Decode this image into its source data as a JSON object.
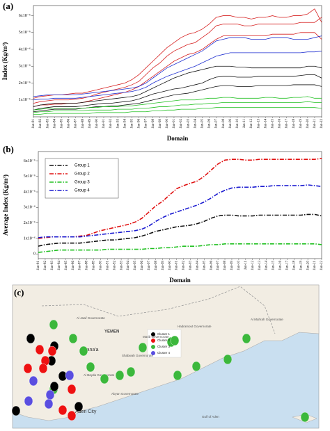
{
  "chart_data": [
    {
      "type": "line",
      "label": "(a)",
      "y_label": "Index (Kg/m³)",
      "x_label": "Domain",
      "line_style": "solid",
      "categories": [
        "Jan-81",
        "Jan-82",
        "Jan-83",
        "Jan-84",
        "Jan-85",
        "Jan-86",
        "Jan-87",
        "Jan-88",
        "Jan-89",
        "Jan-90",
        "Jan-91",
        "Jan-92",
        "Jan-93",
        "Jan-94",
        "Jan-95",
        "Jan-96",
        "Jan-97",
        "Jan-98",
        "Jan-99",
        "Jan-00",
        "Jan-01",
        "Jan-02",
        "Jan-03",
        "Jan-04",
        "Jan-05",
        "Jan-06",
        "Jan-07",
        "Jan-08",
        "Jan-09",
        "Jan-10",
        "Jan-11",
        "Jan-12",
        "Jan-13",
        "Jan-14",
        "Jan-15",
        "Jan-16",
        "Jan-17",
        "Jan-18",
        "Jan-19",
        "Jan-20",
        "Jan-21",
        "Jan-22"
      ],
      "ylim": [
        0,
        6.6e-06
      ],
      "yticks": [
        {
          "value": 1e-06,
          "label": "1x10⁻⁶"
        },
        {
          "value": 2e-06,
          "label": "2x10⁻⁶"
        },
        {
          "value": 3e-06,
          "label": "3x10⁻⁶"
        },
        {
          "value": 4e-06,
          "label": "4x10⁻⁶"
        },
        {
          "value": 5e-06,
          "label": "5x10⁻⁶"
        },
        {
          "value": 6e-06,
          "label": "6x10⁻⁶"
        }
      ],
      "series": [
        {
          "color": "#d62020",
          "values": [
            1.1e-06,
            1.2e-06,
            1.25e-06,
            1.3e-06,
            1.3e-06,
            1.35e-06,
            1.4e-06,
            1.4e-06,
            1.5e-06,
            1.6e-06,
            1.7e-06,
            1.8e-06,
            1.9e-06,
            2e-06,
            2.2e-06,
            2.5e-06,
            2.9e-06,
            3.3e-06,
            3.7e-06,
            4.1e-06,
            4.4e-06,
            4.7e-06,
            4.9e-06,
            5e-06,
            5.2e-06,
            5.5e-06,
            5.9e-06,
            6e-06,
            6e-06,
            5.9e-06,
            5.9e-06,
            5.8e-06,
            5.9e-06,
            5.9e-06,
            6e-06,
            5.9e-06,
            5.9e-06,
            6e-06,
            6e-06,
            6.1e-06,
            6.4e-06,
            5.6e-06
          ]
        },
        {
          "color": "#d62020",
          "values": [
            8e-07,
            9e-07,
            9.5e-07,
            1e-06,
            1e-06,
            1e-06,
            1.05e-06,
            1.1e-06,
            1.2e-06,
            1.35e-06,
            1.45e-06,
            1.55e-06,
            1.65e-06,
            1.75e-06,
            1.9e-06,
            2.1e-06,
            2.5e-06,
            2.9e-06,
            3.2e-06,
            3.6e-06,
            3.9e-06,
            4.1e-06,
            4.3e-06,
            4.4e-06,
            4.7e-06,
            5e-06,
            5.4e-06,
            5.5e-06,
            5.5e-06,
            5.5e-06,
            5.4e-06,
            5.4e-06,
            5.5e-06,
            5.5e-06,
            5.5e-06,
            5.5e-06,
            5.5e-06,
            5.5e-06,
            5.6e-06,
            5.6e-06,
            5.6e-06,
            5.9e-06
          ]
        },
        {
          "color": "#d62020",
          "values": [
            6e-07,
            7e-07,
            7e-07,
            7.5e-07,
            7.5e-07,
            8e-07,
            8e-07,
            8.5e-07,
            9.5e-07,
            1.05e-06,
            1.15e-06,
            1.25e-06,
            1.35e-06,
            1.45e-06,
            1.6e-06,
            1.8e-06,
            2.1e-06,
            2.4e-06,
            2.7e-06,
            3e-06,
            3.3e-06,
            3.5e-06,
            3.7e-06,
            3.8e-06,
            4e-06,
            4.3e-06,
            4.6e-06,
            4.8e-06,
            4.8e-06,
            4.8e-06,
            4.8e-06,
            4.8e-06,
            4.8e-06,
            4.8e-06,
            4.9e-06,
            4.9e-06,
            4.9e-06,
            4.9e-06,
            5e-06,
            5e-06,
            5e-06,
            4.6e-06
          ]
        },
        {
          "color": "#1f2fd0",
          "values": [
            1.2e-06,
            1.25e-06,
            1.3e-06,
            1.3e-06,
            1.3e-06,
            1.3e-06,
            1.3e-06,
            1.35e-06,
            1.4e-06,
            1.45e-06,
            1.5e-06,
            1.55e-06,
            1.6e-06,
            1.65e-06,
            1.7e-06,
            1.8e-06,
            2e-06,
            2.3e-06,
            2.6e-06,
            2.9e-06,
            3.1e-06,
            3.3e-06,
            3.5e-06,
            3.7e-06,
            3.9e-06,
            4.2e-06,
            4.5e-06,
            4.6e-06,
            4.7e-06,
            4.7e-06,
            4.7e-06,
            4.6e-06,
            4.6e-06,
            4.6e-06,
            4.7e-06,
            4.7e-06,
            4.7e-06,
            4.6e-06,
            4.6e-06,
            4.6e-06,
            4.7e-06,
            4.8e-06
          ]
        },
        {
          "color": "#1f2fd0",
          "values": [
            1e-06,
            1.05e-06,
            1.05e-06,
            1.1e-06,
            1.1e-06,
            1.1e-06,
            1.1e-06,
            1.15e-06,
            1.2e-06,
            1.25e-06,
            1.3e-06,
            1.35e-06,
            1.4e-06,
            1.45e-06,
            1.5e-06,
            1.6e-06,
            1.75e-06,
            2e-06,
            2.2e-06,
            2.4e-06,
            2.55e-06,
            2.7e-06,
            2.85e-06,
            3e-06,
            3.2e-06,
            3.4e-06,
            3.6e-06,
            3.7e-06,
            3.8e-06,
            3.8e-06,
            3.8e-06,
            3.8e-06,
            3.8e-06,
            3.8e-06,
            3.8e-06,
            3.8e-06,
            3.8e-06,
            3.8e-06,
            3.8e-06,
            3.85e-06,
            3.85e-06,
            3.9e-06
          ]
        },
        {
          "color": "#111111",
          "values": [
            6e-07,
            7e-07,
            7.5e-07,
            8e-07,
            8e-07,
            8e-07,
            8e-07,
            8.5e-07,
            9e-07,
            9.5e-07,
            1e-06,
            1.05e-06,
            1.1e-06,
            1.15e-06,
            1.2e-06,
            1.3e-06,
            1.5e-06,
            1.7e-06,
            1.9e-06,
            2.1e-06,
            2.3e-06,
            2.45e-06,
            2.6e-06,
            2.7e-06,
            2.8e-06,
            2.9e-06,
            3e-06,
            3e-06,
            3e-06,
            2.95e-06,
            2.95e-06,
            2.9e-06,
            2.9e-06,
            2.9e-06,
            2.9e-06,
            2.9e-06,
            2.9e-06,
            2.9e-06,
            2.9e-06,
            3e-06,
            3e-06,
            2.9e-06
          ]
        },
        {
          "color": "#111111",
          "values": [
            4e-07,
            5e-07,
            5.5e-07,
            6e-07,
            6e-07,
            6e-07,
            6e-07,
            6.5e-07,
            7e-07,
            7.5e-07,
            8e-07,
            8e-07,
            8.5e-07,
            9e-07,
            9.5e-07,
            1.05e-06,
            1.2e-06,
            1.35e-06,
            1.45e-06,
            1.55e-06,
            1.65e-06,
            1.7e-06,
            1.8e-06,
            1.9e-06,
            2e-06,
            2.2e-06,
            2.35e-06,
            2.4e-06,
            2.4e-06,
            2.35e-06,
            2.35e-06,
            2.35e-06,
            2.4e-06,
            2.4e-06,
            2.4e-06,
            2.4e-06,
            2.4e-06,
            2.4e-06,
            2.45e-06,
            2.5e-06,
            2.5e-06,
            2.3e-06
          ]
        },
        {
          "color": "#111111",
          "values": [
            3e-07,
            3.5e-07,
            4e-07,
            4.5e-07,
            4.5e-07,
            4.5e-07,
            4.5e-07,
            5e-07,
            5.5e-07,
            6e-07,
            6e-07,
            6.5e-07,
            6.5e-07,
            7e-07,
            7.5e-07,
            8e-07,
            9e-07,
            1e-06,
            1.1e-06,
            1.2e-06,
            1.3e-06,
            1.35e-06,
            1.4e-06,
            1.5e-06,
            1.6e-06,
            1.7e-06,
            1.8e-06,
            1.85e-06,
            1.85e-06,
            1.8e-06,
            1.8e-06,
            1.8e-06,
            1.85e-06,
            1.85e-06,
            1.85e-06,
            1.85e-06,
            1.85e-06,
            1.9e-06,
            1.9e-06,
            1.9e-06,
            1.9e-06,
            1.8e-06
          ]
        },
        {
          "color": "#22c022",
          "values": [
            4e-07,
            4.5e-07,
            5e-07,
            5e-07,
            5e-07,
            5e-07,
            5e-07,
            5e-07,
            5.5e-07,
            5.5e-07,
            6e-07,
            6e-07,
            6e-07,
            6.5e-07,
            6.5e-07,
            7e-07,
            7.5e-07,
            8e-07,
            8.5e-07,
            9e-07,
            9.5e-07,
            1e-06,
            1e-06,
            1e-06,
            1.05e-06,
            1.1e-06,
            1.1e-06,
            1.15e-06,
            1.15e-06,
            1.1e-06,
            1.1e-06,
            1.1e-06,
            1.1e-06,
            1.15e-06,
            1.15e-06,
            1.1e-06,
            1.1e-06,
            1.15e-06,
            1.15e-06,
            1.2e-06,
            1.1e-06,
            1.1e-06
          ]
        },
        {
          "color": "#22c022",
          "values": [
            2.5e-07,
            3e-07,
            3e-07,
            3.5e-07,
            3.5e-07,
            3.5e-07,
            3.5e-07,
            3.5e-07,
            4e-07,
            4e-07,
            4e-07,
            4e-07,
            4.5e-07,
            4.5e-07,
            4.5e-07,
            5e-07,
            5e-07,
            5.5e-07,
            6e-07,
            6e-07,
            6.5e-07,
            7e-07,
            7e-07,
            7.5e-07,
            7.5e-07,
            8e-07,
            8e-07,
            8.5e-07,
            8.5e-07,
            8.5e-07,
            8.5e-07,
            8.5e-07,
            8.5e-07,
            8.5e-07,
            8.5e-07,
            8.5e-07,
            8.5e-07,
            8.5e-07,
            8.5e-07,
            9e-07,
            8.5e-07,
            8.5e-07
          ]
        },
        {
          "color": "#22c022",
          "values": [
            1.5e-07,
            1.5e-07,
            2e-07,
            2e-07,
            2e-07,
            2e-07,
            2e-07,
            2e-07,
            2e-07,
            2.5e-07,
            2.5e-07,
            2.5e-07,
            2.5e-07,
            2.5e-07,
            3e-07,
            3e-07,
            3e-07,
            3.5e-07,
            3.5e-07,
            4e-07,
            4e-07,
            4.5e-07,
            4.5e-07,
            4.5e-07,
            5e-07,
            5e-07,
            5.5e-07,
            5.5e-07,
            5.5e-07,
            5.5e-07,
            5.5e-07,
            5.5e-07,
            5.5e-07,
            5.5e-07,
            5.5e-07,
            5.5e-07,
            5.5e-07,
            5.5e-07,
            5.5e-07,
            5.5e-07,
            5.5e-07,
            5e-07
          ]
        }
      ]
    },
    {
      "type": "line",
      "label": "(b)",
      "y_label": "Average Index (Kg/m³)",
      "x_label": "Domain",
      "line_style": "dashdot",
      "legend": "upper left",
      "categories": [
        "Jan-81",
        "Jan-82",
        "Jan-83",
        "Jan-84",
        "Jan-85",
        "Jan-86",
        "Jan-87",
        "Jan-88",
        "Jan-89",
        "Jan-90",
        "Jan-91",
        "Jan-92",
        "Jan-93",
        "Jan-94",
        "Jan-95",
        "Jan-96",
        "Jan-97",
        "Jan-98",
        "Jan-99",
        "Jan-00",
        "Jan-01",
        "Jan-02",
        "Jan-03",
        "Jan-04",
        "Jan-05",
        "Jan-06",
        "Jan-07",
        "Jan-08",
        "Jan-09",
        "Jan-10",
        "Jan-11",
        "Jan-12",
        "Jan-13",
        "Jan-14",
        "Jan-15",
        "Jan-16",
        "Jan-17",
        "Jan-18",
        "Jan-19",
        "Jan-20",
        "Jan-21",
        "Jan-22"
      ],
      "ylim": [
        -3e-07,
        6.6e-06
      ],
      "yticks": [
        0,
        {
          "value": 1e-06,
          "label": "1x10⁻⁶"
        },
        {
          "value": 2e-06,
          "label": "2x10⁻⁶"
        },
        {
          "value": 3e-06,
          "label": "3x10⁻⁶"
        },
        {
          "value": 4e-06,
          "label": "4x10⁻⁶"
        },
        {
          "value": 5e-06,
          "label": "5x10⁻⁶"
        },
        {
          "value": 6e-06,
          "label": "6x10⁻⁶"
        }
      ],
      "series": [
        {
          "name": "Group 1",
          "color": "#111111",
          "values": [
            5e-07,
            6e-07,
            6.5e-07,
            7e-07,
            7e-07,
            7e-07,
            7e-07,
            7.5e-07,
            8e-07,
            8.5e-07,
            9e-07,
            9e-07,
            9.5e-07,
            1e-06,
            1.05e-06,
            1.15e-06,
            1.3e-06,
            1.45e-06,
            1.55e-06,
            1.65e-06,
            1.75e-06,
            1.8e-06,
            1.85e-06,
            1.95e-06,
            2.1e-06,
            2.3e-06,
            2.45e-06,
            2.5e-06,
            2.5e-06,
            2.45e-06,
            2.45e-06,
            2.45e-06,
            2.5e-06,
            2.5e-06,
            2.5e-06,
            2.5e-06,
            2.5e-06,
            2.5e-06,
            2.5e-06,
            2.55e-06,
            2.55e-06,
            2.45e-06
          ]
        },
        {
          "name": "Group 2",
          "color": "#e01010",
          "values": [
            1e-06,
            1.05e-06,
            1.1e-06,
            1.1e-06,
            1.1e-06,
            1.1e-06,
            1.15e-06,
            1.2e-06,
            1.35e-06,
            1.5e-06,
            1.6e-06,
            1.7e-06,
            1.8e-06,
            1.9e-06,
            2.05e-06,
            2.3e-06,
            2.7e-06,
            3.1e-06,
            3.4e-06,
            3.8e-06,
            4.2e-06,
            4.4e-06,
            4.55e-06,
            4.7e-06,
            5e-06,
            5.4e-06,
            5.8e-06,
            6.05e-06,
            6.1e-06,
            6.1e-06,
            6.05e-06,
            6.05e-06,
            6.1e-06,
            6.1e-06,
            6.1e-06,
            6.1e-06,
            6.1e-06,
            6.1e-06,
            6.1e-06,
            6.1e-06,
            6.1e-06,
            6.15e-06
          ]
        },
        {
          "name": "Group 3",
          "color": "#20c020",
          "values": [
            1e-07,
            1.5e-07,
            2e-07,
            2.5e-07,
            2.5e-07,
            2.5e-07,
            2.5e-07,
            2.5e-07,
            2.5e-07,
            2.5e-07,
            3e-07,
            3e-07,
            3e-07,
            3e-07,
            3e-07,
            3e-07,
            3.5e-07,
            3.5e-07,
            4e-07,
            4e-07,
            4.5e-07,
            5e-07,
            5e-07,
            5e-07,
            5.5e-07,
            6e-07,
            6e-07,
            6.5e-07,
            6.5e-07,
            6.5e-07,
            6.5e-07,
            6.5e-07,
            6.5e-07,
            6.5e-07,
            6.5e-07,
            6.5e-07,
            6.5e-07,
            6.5e-07,
            6.5e-07,
            6.5e-07,
            6.5e-07,
            6e-07
          ]
        },
        {
          "name": "Group 4",
          "color": "#1a1ad0",
          "values": [
            1.05e-06,
            1.1e-06,
            1.1e-06,
            1.1e-06,
            1.1e-06,
            1.1e-06,
            1.1e-06,
            1.15e-06,
            1.2e-06,
            1.25e-06,
            1.3e-06,
            1.35e-06,
            1.4e-06,
            1.45e-06,
            1.5e-06,
            1.6e-06,
            1.8e-06,
            2.1e-06,
            2.35e-06,
            2.55e-06,
            2.7e-06,
            2.85e-06,
            3e-06,
            3.15e-06,
            3.35e-06,
            3.6e-06,
            3.9e-06,
            4.1e-06,
            4.25e-06,
            4.3e-06,
            4.3e-06,
            4.3e-06,
            4.35e-06,
            4.35e-06,
            4.4e-06,
            4.4e-06,
            4.4e-06,
            4.4e-06,
            4.4e-06,
            4.45e-06,
            4.4e-06,
            4.35e-06
          ]
        }
      ]
    }
  ],
  "map": {
    "label": "(c)",
    "country": "YEMEN",
    "sea": "Gulf of Aden",
    "places": [
      "Sana'a",
      "Al Jawf Governorate",
      "Marib Governorate",
      "Shabwah Governorate",
      "Hadramout Governorate",
      "Al Mahrah Governorate",
      "Al Bayda Governorate",
      "Abyan Governorate",
      "Aden City"
    ],
    "legend": [
      {
        "name": "Cluster 1",
        "color": "#000000"
      },
      {
        "name": "Cluster 2",
        "color": "#ee1111"
      },
      {
        "name": "Cluster 3",
        "color": "#3cb83c"
      },
      {
        "name": "Cluster 4",
        "color": "#5a4ee0"
      }
    ]
  }
}
